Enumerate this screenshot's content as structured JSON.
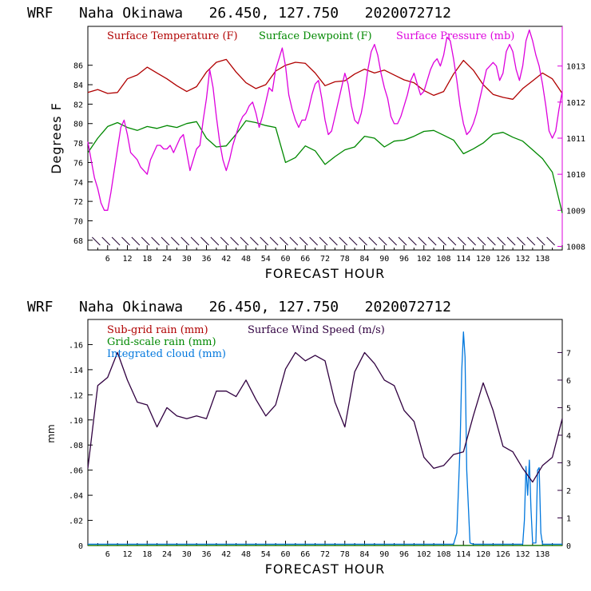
{
  "colors": {
    "temperature": "#b00000",
    "dewpoint": "#008800",
    "pressure": "#dd00dd",
    "subgrid": "#b00000",
    "gridscale": "#008800",
    "cloud": "#0077dd",
    "wind": "#300040",
    "axis_left_top": "#000000",
    "axis_right_top": "#dd00dd",
    "axis_right_bottom": "#300040",
    "barb": "#200030"
  },
  "chart_data": [
    {
      "type": "line",
      "title": "WRF   Naha Okinawa   26.450, 127.750   2020072712",
      "xlabel": "FORECAST HOUR",
      "ylabel": "Degrees F",
      "xlim": [
        0,
        144
      ],
      "ylim": [
        67,
        90
      ],
      "yticks": [
        "68",
        "70",
        "72",
        "74",
        "76",
        "78",
        "80",
        "82",
        "84",
        "86"
      ],
      "xticks": [
        "6",
        "12",
        "18",
        "24",
        "30",
        "36",
        "42",
        "48",
        "54",
        "60",
        "66",
        "72",
        "78",
        "84",
        "90",
        "96",
        "102",
        "108",
        "114",
        "120",
        "126",
        "132",
        "138"
      ],
      "right_axis": {
        "label": "mb",
        "lim": [
          1007.9,
          1014.1
        ],
        "ticks": [
          "1008",
          "1009",
          "1010",
          "1011",
          "1012",
          "1013"
        ]
      },
      "legend_placement": "top",
      "series": [
        {
          "name": "Surface Temperature (F)",
          "axis": "left",
          "x": [
            0,
            3,
            6,
            9,
            12,
            15,
            18,
            21,
            24,
            27,
            30,
            33,
            36,
            39,
            42,
            45,
            48,
            51,
            54,
            57,
            60,
            63,
            66,
            69,
            72,
            75,
            78,
            81,
            84,
            87,
            90,
            93,
            96,
            99,
            102,
            105,
            108,
            111,
            114,
            117,
            120,
            123,
            126,
            129,
            132,
            135,
            138,
            141,
            144
          ],
          "values": [
            83.2,
            83.5,
            83.1,
            83.2,
            84.6,
            85.0,
            85.8,
            85.2,
            84.6,
            83.9,
            83.3,
            83.8,
            85.3,
            86.3,
            86.6,
            85.3,
            84.2,
            83.6,
            84.0,
            85.4,
            86.0,
            86.3,
            86.2,
            85.2,
            83.9,
            84.3,
            84.4,
            85.1,
            85.6,
            85.2,
            85.5,
            85.0,
            84.5,
            84.2,
            83.4,
            82.9,
            83.3,
            85.1,
            86.5,
            85.5,
            84.0,
            83.0,
            82.7,
            82.5,
            83.6,
            84.4,
            85.2,
            84.6,
            83.1
          ]
        },
        {
          "name": "Surface Dewpoint (F)",
          "axis": "left",
          "x": [
            0,
            3,
            6,
            9,
            12,
            15,
            18,
            21,
            24,
            27,
            30,
            33,
            36,
            39,
            42,
            45,
            48,
            51,
            54,
            57,
            60,
            63,
            66,
            69,
            72,
            75,
            78,
            81,
            84,
            87,
            90,
            93,
            96,
            99,
            102,
            105,
            108,
            111,
            114,
            117,
            120,
            123,
            126,
            129,
            132,
            135,
            138,
            141,
            144
          ],
          "values": [
            77.0,
            78.5,
            79.7,
            80.1,
            79.6,
            79.3,
            79.7,
            79.5,
            79.8,
            79.6,
            80.0,
            80.2,
            78.5,
            77.6,
            77.7,
            78.9,
            80.3,
            80.1,
            79.8,
            79.6,
            76.0,
            76.5,
            77.7,
            77.2,
            75.8,
            76.6,
            77.3,
            77.6,
            78.7,
            78.5,
            77.6,
            78.2,
            78.3,
            78.7,
            79.2,
            79.3,
            78.8,
            78.3,
            76.9,
            77.4,
            78.0,
            78.9,
            79.1,
            78.6,
            78.2,
            77.3,
            76.4,
            75.0,
            70.8
          ]
        },
        {
          "name": "Surface Pressure (mb)",
          "axis": "right",
          "x": [
            0,
            1,
            2,
            3,
            4,
            5,
            6,
            7,
            8,
            9,
            10,
            11,
            12,
            13,
            14,
            15,
            16,
            17,
            18,
            19,
            20,
            21,
            22,
            23,
            24,
            25,
            26,
            27,
            28,
            29,
            30,
            31,
            32,
            33,
            34,
            35,
            36,
            37,
            38,
            39,
            40,
            41,
            42,
            43,
            44,
            45,
            46,
            47,
            48,
            49,
            50,
            51,
            52,
            53,
            54,
            55,
            56,
            57,
            58,
            59,
            60,
            61,
            62,
            63,
            64,
            65,
            66,
            67,
            68,
            69,
            70,
            71,
            72,
            73,
            74,
            75,
            76,
            77,
            78,
            79,
            80,
            81,
            82,
            83,
            84,
            85,
            86,
            87,
            88,
            89,
            90,
            91,
            92,
            93,
            94,
            95,
            96,
            97,
            98,
            99,
            100,
            101,
            102,
            103,
            104,
            105,
            106,
            107,
            108,
            109,
            110,
            111,
            112,
            113,
            114,
            115,
            116,
            117,
            118,
            119,
            120,
            121,
            122,
            123,
            124,
            125,
            126,
            127,
            128,
            129,
            130,
            131,
            132,
            133,
            134,
            135,
            136,
            137,
            138,
            139,
            140,
            141,
            142,
            143,
            144
          ],
          "values": [
            1010.9,
            1010.4,
            1009.9,
            1009.6,
            1009.2,
            1009.0,
            1009.0,
            1009.5,
            1010.1,
            1010.7,
            1011.3,
            1011.5,
            1011.1,
            1010.6,
            1010.5,
            1010.4,
            1010.2,
            1010.1,
            1010.0,
            1010.4,
            1010.6,
            1010.8,
            1010.8,
            1010.7,
            1010.7,
            1010.8,
            1010.6,
            1010.8,
            1011.0,
            1011.1,
            1010.6,
            1010.1,
            1010.4,
            1010.7,
            1010.8,
            1011.5,
            1012.1,
            1012.9,
            1012.4,
            1011.6,
            1010.9,
            1010.4,
            1010.1,
            1010.4,
            1010.8,
            1011.1,
            1011.4,
            1011.6,
            1011.7,
            1011.9,
            1012.0,
            1011.7,
            1011.3,
            1011.6,
            1012.0,
            1012.4,
            1012.3,
            1012.9,
            1013.2,
            1013.5,
            1013.0,
            1012.2,
            1011.8,
            1011.5,
            1011.3,
            1011.5,
            1011.5,
            1011.8,
            1012.2,
            1012.5,
            1012.6,
            1012.1,
            1011.5,
            1011.1,
            1011.2,
            1011.6,
            1012.0,
            1012.4,
            1012.8,
            1012.5,
            1011.9,
            1011.5,
            1011.4,
            1011.7,
            1012.2,
            1012.9,
            1013.4,
            1013.6,
            1013.3,
            1012.8,
            1012.4,
            1012.1,
            1011.6,
            1011.4,
            1011.4,
            1011.6,
            1011.9,
            1012.2,
            1012.6,
            1012.8,
            1012.5,
            1012.2,
            1012.3,
            1012.6,
            1012.9,
            1013.1,
            1013.2,
            1013.0,
            1013.3,
            1013.8,
            1013.7,
            1013.2,
            1012.6,
            1011.9,
            1011.4,
            1011.1,
            1011.2,
            1011.4,
            1011.7,
            1012.1,
            1012.5,
            1012.9,
            1013.0,
            1013.1,
            1013.0,
            1012.6,
            1012.8,
            1013.4,
            1013.6,
            1013.4,
            1012.9,
            1012.6,
            1013.0,
            1013.7,
            1014.0,
            1013.7,
            1013.3,
            1013.0,
            1012.5,
            1011.9,
            1011.2,
            1011.0,
            1011.2,
            1011.8,
            1012.3
          ]
        }
      ]
    },
    {
      "type": "line",
      "title": "WRF   Naha Okinawa   26.450, 127.750   2020072712",
      "xlabel": "FORECAST HOUR",
      "ylabel": "mm",
      "xlim": [
        0,
        144
      ],
      "ylim": [
        0,
        0.18
      ],
      "yticks": [
        "0",
        ".02",
        ".04",
        ".06",
        ".08",
        ".10",
        ".12",
        ".14",
        ".16"
      ],
      "xticks": [
        "6",
        "12",
        "18",
        "24",
        "30",
        "36",
        "42",
        "48",
        "54",
        "60",
        "66",
        "72",
        "78",
        "84",
        "90",
        "96",
        "102",
        "108",
        "114",
        "120",
        "126",
        "132",
        "138"
      ],
      "right_axis": {
        "label": "m/s",
        "lim": [
          0,
          8.2
        ],
        "ticks": [
          "0",
          "1",
          "2",
          "3",
          "4",
          "5",
          "6",
          "7"
        ]
      },
      "legend_placement": "top-left",
      "series": [
        {
          "name": "Sub-grid rain (mm)",
          "axis": "left",
          "x": [
            0,
            144
          ],
          "values": [
            0,
            0
          ]
        },
        {
          "name": "Grid-scale rain (mm)",
          "axis": "left",
          "x": [
            0,
            144
          ],
          "values": [
            0,
            0
          ]
        },
        {
          "name": "Integrated cloud (mm)",
          "axis": "left",
          "x": [
            0,
            111,
            112,
            113,
            113.5,
            114,
            114.5,
            115,
            116,
            117,
            132,
            132.5,
            133,
            133.5,
            134,
            134.5,
            135,
            136,
            136.5,
            137,
            137.5,
            138,
            144
          ],
          "values": [
            0.001,
            0.001,
            0.01,
            0.08,
            0.14,
            0.17,
            0.15,
            0.06,
            0.002,
            0.001,
            0.001,
            0.02,
            0.063,
            0.04,
            0.068,
            0.03,
            0.002,
            0.002,
            0.06,
            0.062,
            0.01,
            0.001,
            0.001
          ]
        },
        {
          "name": "Surface Wind Speed (m/s)",
          "axis": "right",
          "x": [
            0,
            3,
            6,
            9,
            12,
            15,
            18,
            21,
            24,
            27,
            30,
            33,
            36,
            39,
            42,
            45,
            48,
            51,
            54,
            57,
            60,
            63,
            66,
            69,
            72,
            75,
            78,
            81,
            84,
            87,
            90,
            93,
            96,
            99,
            102,
            105,
            108,
            111,
            114,
            117,
            120,
            123,
            126,
            129,
            132,
            135,
            138,
            141,
            144
          ],
          "values": [
            2.8,
            5.8,
            6.1,
            7.0,
            6.0,
            5.2,
            5.1,
            4.3,
            5.0,
            4.7,
            4.6,
            4.7,
            4.6,
            5.6,
            5.6,
            5.4,
            6.0,
            5.3,
            4.7,
            5.1,
            6.4,
            7.0,
            6.7,
            6.9,
            6.7,
            5.2,
            4.3,
            6.3,
            7.0,
            6.6,
            6.0,
            5.8,
            4.9,
            4.5,
            3.2,
            2.8,
            2.9,
            3.3,
            3.4,
            4.7,
            5.9,
            4.9,
            3.6,
            3.4,
            2.8,
            2.3,
            2.9,
            3.2,
            4.6
          ]
        }
      ]
    }
  ]
}
